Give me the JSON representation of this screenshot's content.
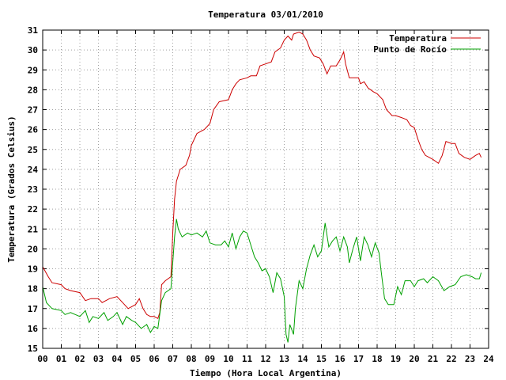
{
  "chart_data": {
    "type": "line",
    "title": "Temperatura 03/01/2010",
    "xlabel": "Tiempo (Hora Local Argentina)",
    "ylabel": "Temperatura (Grados Celsius)",
    "xlim": [
      0,
      24
    ],
    "ylim": [
      15,
      31
    ],
    "x_ticks": [
      "00",
      "01",
      "02",
      "03",
      "04",
      "05",
      "06",
      "07",
      "08",
      "09",
      "10",
      "11",
      "12",
      "13",
      "14",
      "15",
      "16",
      "17",
      "18",
      "19",
      "20",
      "21",
      "22",
      "23",
      "24"
    ],
    "y_ticks": [
      15,
      16,
      17,
      18,
      19,
      20,
      21,
      22,
      23,
      24,
      25,
      26,
      27,
      28,
      29,
      30,
      31
    ],
    "grid": true,
    "legend_position": "top-right",
    "series": [
      {
        "name": "Temperatura",
        "color": "#cc0000",
        "points": [
          [
            0.0,
            19.1
          ],
          [
            0.3,
            18.6
          ],
          [
            0.5,
            18.3
          ],
          [
            1.0,
            18.2
          ],
          [
            1.2,
            18.0
          ],
          [
            1.5,
            17.9
          ],
          [
            2.0,
            17.8
          ],
          [
            2.3,
            17.4
          ],
          [
            2.6,
            17.5
          ],
          [
            3.0,
            17.5
          ],
          [
            3.2,
            17.3
          ],
          [
            3.6,
            17.5
          ],
          [
            4.0,
            17.6
          ],
          [
            4.3,
            17.3
          ],
          [
            4.6,
            17.0
          ],
          [
            5.0,
            17.2
          ],
          [
            5.2,
            17.5
          ],
          [
            5.4,
            17.0
          ],
          [
            5.6,
            16.7
          ],
          [
            5.8,
            16.6
          ],
          [
            6.0,
            16.6
          ],
          [
            6.2,
            16.5
          ],
          [
            6.3,
            16.8
          ],
          [
            6.4,
            18.2
          ],
          [
            6.6,
            18.4
          ],
          [
            6.9,
            18.6
          ],
          [
            7.0,
            20.8
          ],
          [
            7.1,
            22.5
          ],
          [
            7.2,
            23.4
          ],
          [
            7.4,
            24.0
          ],
          [
            7.7,
            24.2
          ],
          [
            7.9,
            24.7
          ],
          [
            8.0,
            25.2
          ],
          [
            8.3,
            25.8
          ],
          [
            8.7,
            26.0
          ],
          [
            9.0,
            26.3
          ],
          [
            9.2,
            27.0
          ],
          [
            9.5,
            27.4
          ],
          [
            10.0,
            27.5
          ],
          [
            10.2,
            28.0
          ],
          [
            10.4,
            28.3
          ],
          [
            10.6,
            28.5
          ],
          [
            11.0,
            28.6
          ],
          [
            11.2,
            28.7
          ],
          [
            11.5,
            28.7
          ],
          [
            11.7,
            29.2
          ],
          [
            12.0,
            29.3
          ],
          [
            12.3,
            29.4
          ],
          [
            12.5,
            29.9
          ],
          [
            12.8,
            30.1
          ],
          [
            13.0,
            30.5
          ],
          [
            13.2,
            30.7
          ],
          [
            13.4,
            30.5
          ],
          [
            13.5,
            30.8
          ],
          [
            13.8,
            30.9
          ],
          [
            14.0,
            30.8
          ],
          [
            14.2,
            30.5
          ],
          [
            14.4,
            30.0
          ],
          [
            14.6,
            29.7
          ],
          [
            14.9,
            29.6
          ],
          [
            15.1,
            29.3
          ],
          [
            15.3,
            28.8
          ],
          [
            15.5,
            29.2
          ],
          [
            15.8,
            29.2
          ],
          [
            16.0,
            29.5
          ],
          [
            16.2,
            29.9
          ],
          [
            16.3,
            29.3
          ],
          [
            16.5,
            28.6
          ],
          [
            16.7,
            28.6
          ],
          [
            17.0,
            28.6
          ],
          [
            17.1,
            28.3
          ],
          [
            17.3,
            28.4
          ],
          [
            17.5,
            28.1
          ],
          [
            17.8,
            27.9
          ],
          [
            18.0,
            27.8
          ],
          [
            18.3,
            27.5
          ],
          [
            18.5,
            27.0
          ],
          [
            18.8,
            26.7
          ],
          [
            19.0,
            26.7
          ],
          [
            19.3,
            26.6
          ],
          [
            19.6,
            26.5
          ],
          [
            19.8,
            26.2
          ],
          [
            20.0,
            26.1
          ],
          [
            20.2,
            25.5
          ],
          [
            20.4,
            25.0
          ],
          [
            20.6,
            24.7
          ],
          [
            21.0,
            24.5
          ],
          [
            21.3,
            24.3
          ],
          [
            21.5,
            24.7
          ],
          [
            21.7,
            25.4
          ],
          [
            22.0,
            25.3
          ],
          [
            22.2,
            25.3
          ],
          [
            22.4,
            24.8
          ],
          [
            22.7,
            24.6
          ],
          [
            23.0,
            24.5
          ],
          [
            23.3,
            24.7
          ],
          [
            23.5,
            24.8
          ],
          [
            23.6,
            24.6
          ]
        ]
      },
      {
        "name": "Punto de Rocío",
        "color": "#00a000",
        "points": [
          [
            0.0,
            18.1
          ],
          [
            0.2,
            17.3
          ],
          [
            0.5,
            17.0
          ],
          [
            1.0,
            16.9
          ],
          [
            1.2,
            16.7
          ],
          [
            1.5,
            16.8
          ],
          [
            2.0,
            16.6
          ],
          [
            2.3,
            16.9
          ],
          [
            2.5,
            16.3
          ],
          [
            2.7,
            16.6
          ],
          [
            3.0,
            16.5
          ],
          [
            3.3,
            16.8
          ],
          [
            3.5,
            16.4
          ],
          [
            3.8,
            16.6
          ],
          [
            4.0,
            16.8
          ],
          [
            4.3,
            16.2
          ],
          [
            4.5,
            16.6
          ],
          [
            4.8,
            16.4
          ],
          [
            5.0,
            16.3
          ],
          [
            5.3,
            16.0
          ],
          [
            5.6,
            16.2
          ],
          [
            5.8,
            15.8
          ],
          [
            6.0,
            16.1
          ],
          [
            6.2,
            16.0
          ],
          [
            6.4,
            17.4
          ],
          [
            6.6,
            17.8
          ],
          [
            6.9,
            18.0
          ],
          [
            7.0,
            19.3
          ],
          [
            7.1,
            20.6
          ],
          [
            7.2,
            21.5
          ],
          [
            7.3,
            21.0
          ],
          [
            7.5,
            20.6
          ],
          [
            7.8,
            20.8
          ],
          [
            8.0,
            20.7
          ],
          [
            8.3,
            20.8
          ],
          [
            8.6,
            20.6
          ],
          [
            8.8,
            20.9
          ],
          [
            9.0,
            20.3
          ],
          [
            9.3,
            20.2
          ],
          [
            9.6,
            20.2
          ],
          [
            9.8,
            20.4
          ],
          [
            10.0,
            20.1
          ],
          [
            10.2,
            20.8
          ],
          [
            10.4,
            20.0
          ],
          [
            10.6,
            20.6
          ],
          [
            10.8,
            20.9
          ],
          [
            11.0,
            20.8
          ],
          [
            11.2,
            20.2
          ],
          [
            11.4,
            19.6
          ],
          [
            11.6,
            19.3
          ],
          [
            11.8,
            18.9
          ],
          [
            12.0,
            19.0
          ],
          [
            12.2,
            18.6
          ],
          [
            12.4,
            17.8
          ],
          [
            12.6,
            18.8
          ],
          [
            12.8,
            18.5
          ],
          [
            13.0,
            17.6
          ],
          [
            13.1,
            15.7
          ],
          [
            13.2,
            15.3
          ],
          [
            13.3,
            16.2
          ],
          [
            13.5,
            15.7
          ],
          [
            13.6,
            17.0
          ],
          [
            13.8,
            18.4
          ],
          [
            14.0,
            18.0
          ],
          [
            14.2,
            19.0
          ],
          [
            14.4,
            19.7
          ],
          [
            14.6,
            20.2
          ],
          [
            14.8,
            19.6
          ],
          [
            15.0,
            19.9
          ],
          [
            15.2,
            21.3
          ],
          [
            15.4,
            20.1
          ],
          [
            15.6,
            20.4
          ],
          [
            15.8,
            20.6
          ],
          [
            16.0,
            19.9
          ],
          [
            16.2,
            20.6
          ],
          [
            16.4,
            20.1
          ],
          [
            16.5,
            19.3
          ],
          [
            16.7,
            20.0
          ],
          [
            16.9,
            20.6
          ],
          [
            17.1,
            19.4
          ],
          [
            17.3,
            20.6
          ],
          [
            17.5,
            20.2
          ],
          [
            17.7,
            19.6
          ],
          [
            17.9,
            20.3
          ],
          [
            18.1,
            19.8
          ],
          [
            18.2,
            19.0
          ],
          [
            18.4,
            17.5
          ],
          [
            18.6,
            17.2
          ],
          [
            18.9,
            17.2
          ],
          [
            19.1,
            18.1
          ],
          [
            19.3,
            17.7
          ],
          [
            19.5,
            18.4
          ],
          [
            19.8,
            18.4
          ],
          [
            20.0,
            18.1
          ],
          [
            20.2,
            18.4
          ],
          [
            20.5,
            18.5
          ],
          [
            20.7,
            18.3
          ],
          [
            21.0,
            18.6
          ],
          [
            21.3,
            18.4
          ],
          [
            21.6,
            17.9
          ],
          [
            21.9,
            18.1
          ],
          [
            22.2,
            18.2
          ],
          [
            22.5,
            18.6
          ],
          [
            22.8,
            18.7
          ],
          [
            23.1,
            18.6
          ],
          [
            23.3,
            18.5
          ],
          [
            23.5,
            18.5
          ],
          [
            23.6,
            18.8
          ]
        ]
      }
    ]
  }
}
